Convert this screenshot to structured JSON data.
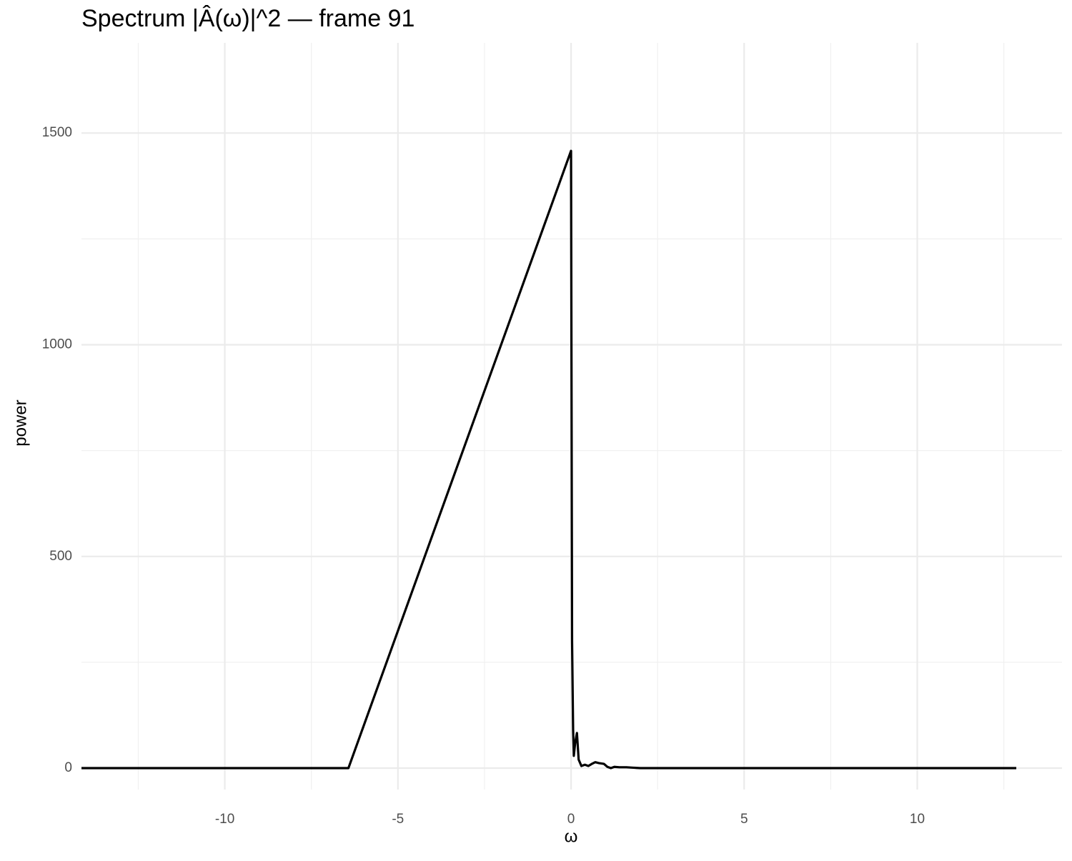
{
  "chart_data": {
    "type": "line",
    "title": "Spectrum |Â(ω)|^2 — frame 91",
    "x_label": "ω",
    "y_label": "power",
    "x": [
      -14.14,
      -6.43,
      0,
      0.03,
      0.06,
      0.08,
      0.12,
      0.17,
      0.22,
      0.3,
      0.4,
      0.5,
      0.6,
      0.7,
      0.8,
      0.95,
      1.05,
      1.15,
      1.25,
      1.4,
      1.6,
      1.8,
      2.0,
      2.5,
      12.86
    ],
    "values": [
      0,
      0,
      1458,
      300,
      90,
      29,
      60,
      83,
      20,
      5,
      8,
      5,
      10,
      14,
      12,
      10,
      3,
      0,
      3,
      2,
      2,
      1,
      0,
      0,
      0
    ],
    "color": "#000000",
    "xlim": [
      -14.14,
      14.18
    ],
    "ylim": [
      -50.6,
      1713
    ],
    "xticks": [
      -10,
      -5,
      0,
      5,
      10
    ],
    "yticks": [
      0,
      500,
      1000,
      1500
    ],
    "xminor": [
      -12.5,
      -7.5,
      -2.5,
      2.5,
      7.5,
      12.5
    ],
    "yminor": [
      250,
      750,
      1250
    ],
    "grid": true
  }
}
